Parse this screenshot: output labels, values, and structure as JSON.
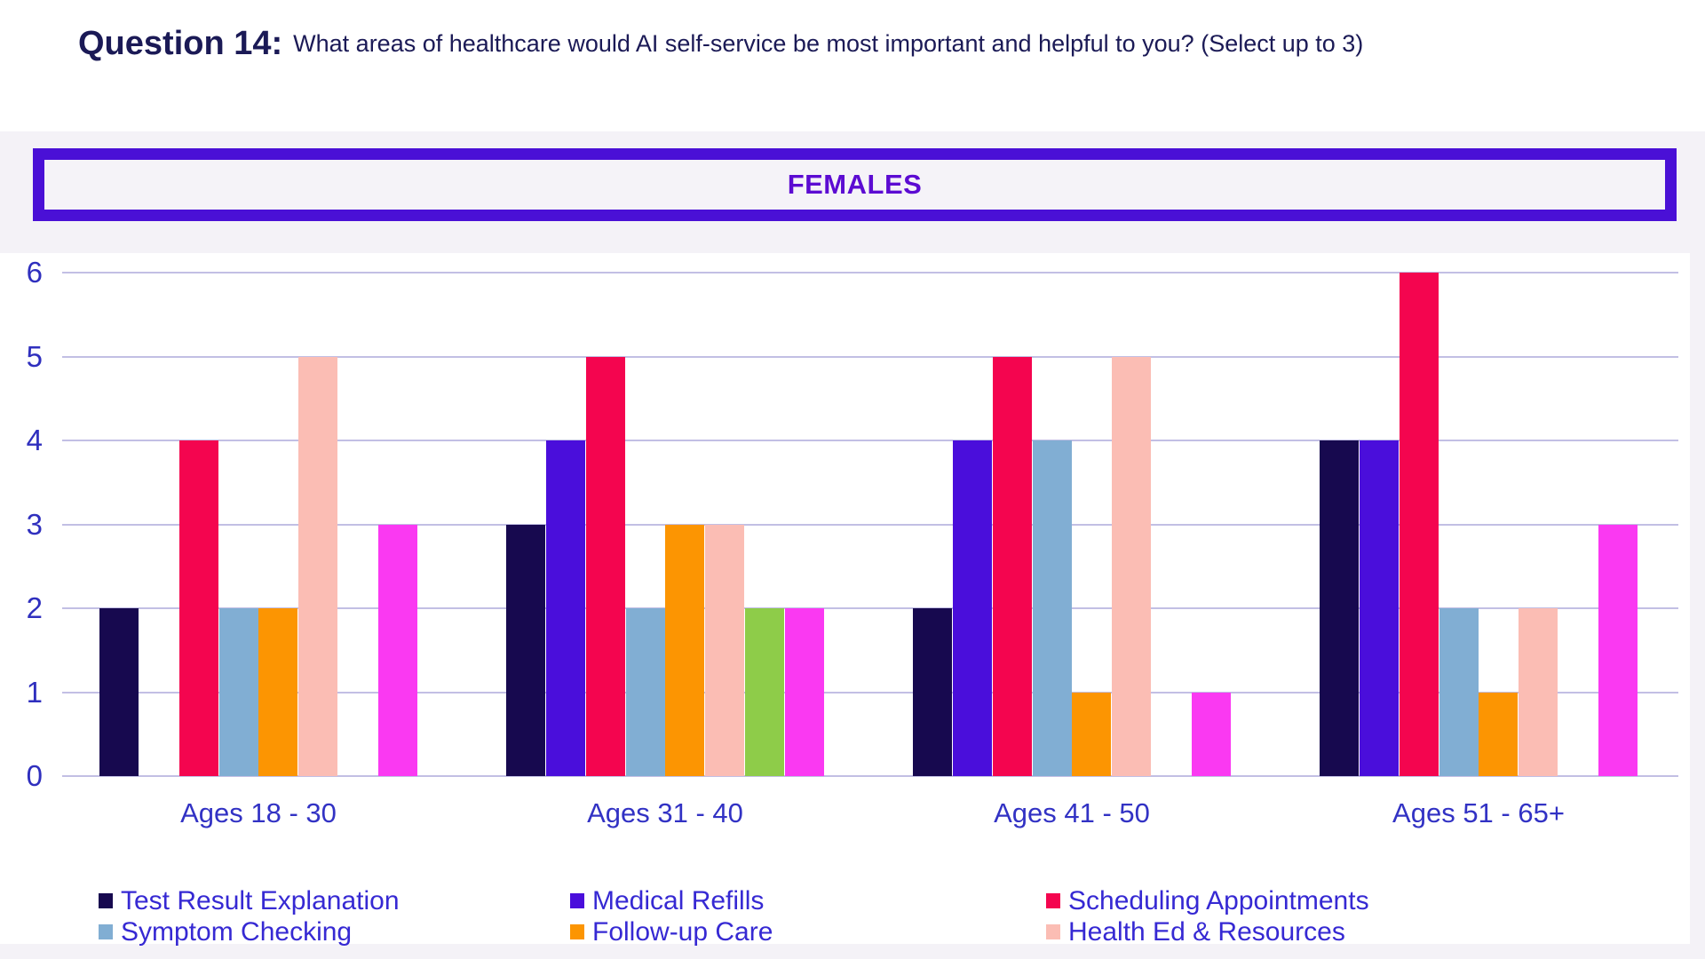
{
  "title": {
    "prefix": "Question 14:",
    "text": "What areas of healthcare would AI self-service be most important and helpful to you? (Select up to 3)"
  },
  "section_header": {
    "label": "FEMALES",
    "text_color": "#5C0BD2",
    "border_color": "#4A10D6"
  },
  "colors": {
    "page_background": "#F4F2F7",
    "panel_background": "#FFFFFF",
    "gridline": "#C2BFE4",
    "axis_text": "#2F2FBE",
    "category_text": "#3232C4",
    "legend_text": "#3629D3",
    "title_text": "#1B1A56"
  },
  "chart_data": {
    "type": "bar",
    "title": "FEMALES",
    "categories": [
      "Ages 18 - 30",
      "Ages 31 - 40",
      "Ages 41 - 50",
      "Ages 51 - 65+"
    ],
    "series": [
      {
        "name": "Test Result Explanation",
        "color": "#17094F",
        "values": [
          2,
          3,
          2,
          4
        ]
      },
      {
        "name": "Medical Refills",
        "color": "#4A0EDB",
        "values": [
          0,
          4,
          4,
          4
        ]
      },
      {
        "name": "Scheduling Appointments",
        "color": "#F4054F",
        "values": [
          4,
          5,
          5,
          6
        ]
      },
      {
        "name": "Symptom Checking",
        "color": "#81AED3",
        "values": [
          2,
          2,
          4,
          2
        ]
      },
      {
        "name": "Follow-up Care",
        "color": "#FC9502",
        "values": [
          2,
          3,
          1,
          1
        ]
      },
      {
        "name": "Health Ed & Resources",
        "color": "#FBBDB4",
        "values": [
          5,
          3,
          5,
          2
        ]
      },
      {
        "name": "",
        "color": "#8ECC49",
        "values": [
          0,
          2,
          0,
          0
        ]
      },
      {
        "name": "",
        "color": "#FA39F2",
        "values": [
          3,
          2,
          1,
          3
        ]
      }
    ],
    "xlabel": "",
    "ylabel": "",
    "ylim": [
      0,
      6
    ],
    "yticks": [
      "0",
      "1",
      "2",
      "3",
      "4",
      "5",
      "6"
    ],
    "grid": true,
    "legend_position": "bottom",
    "legend_visible_entries": [
      "Test Result Explanation",
      "Medical Refills",
      "Scheduling Appointments",
      "Symptom Checking",
      "Follow-up Care",
      "Health Ed & Resources"
    ]
  }
}
